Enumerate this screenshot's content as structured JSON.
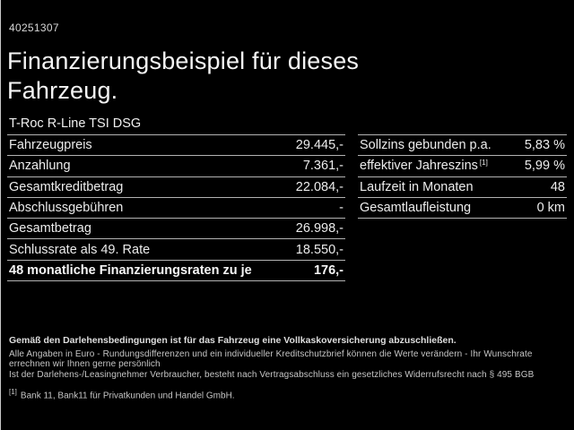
{
  "page": {
    "id_code": "40251307",
    "title_line1": "Finanzierungsbeispiel für dieses",
    "title_line2": "Fahrzeug.",
    "vehicle_model": "T-Roc R-Line TSI DSG"
  },
  "colors": {
    "background": "#000000",
    "text": "#ececec",
    "separator_line": "#b2b2b2",
    "footer_text": "#c6c6c6"
  },
  "left_table": {
    "rows": [
      {
        "label": "Fahrzeugpreis",
        "value": "29.445,-"
      },
      {
        "label": "Anzahlung",
        "value": "7.361,-"
      },
      {
        "label": "Gesamtkreditbetrag",
        "value": "22.084,-"
      },
      {
        "label": "Abschlussgebühren",
        "value": "-"
      },
      {
        "label": "Gesamtbetrag",
        "value": "26.998,-"
      },
      {
        "label": "Schlussrate als 49. Rate",
        "value": "18.550,-"
      },
      {
        "label": "48 monatliche Finanzierungsraten zu je",
        "value": "176,-"
      }
    ]
  },
  "right_table": {
    "rows": [
      {
        "label": "Sollzins gebunden p.a.",
        "value": "5,83 %"
      },
      {
        "label": "effektiver Jahreszins",
        "sup": "[1]",
        "value": "5,99 %"
      },
      {
        "label": "Laufzeit in Monaten",
        "value": "48"
      },
      {
        "label": "Gesamtlaufleistung",
        "value": "0 km"
      }
    ]
  },
  "footer": {
    "insurance_note": "Gemäß den Darlehensbedingungen ist für das Fahrzeug eine Vollkaskoversicherung abzuschließen.",
    "line2": "Alle Angaben in Euro - Rundungsdifferenzen und ein individueller Kreditschutzbrief können die Werte verändern - Ihr Wunschrate errechnen wir Ihnen gerne persönlich",
    "line3": "Ist der Darlehens-/Leasingnehmer Verbraucher, besteht nach Vertragsabschluss ein gesetzliches Widerrufsrecht nach § 495 BGB",
    "footnote_marker": "[1]",
    "footnote_text": "Bank 11, Bank11 für Privatkunden und Handel GmbH."
  }
}
